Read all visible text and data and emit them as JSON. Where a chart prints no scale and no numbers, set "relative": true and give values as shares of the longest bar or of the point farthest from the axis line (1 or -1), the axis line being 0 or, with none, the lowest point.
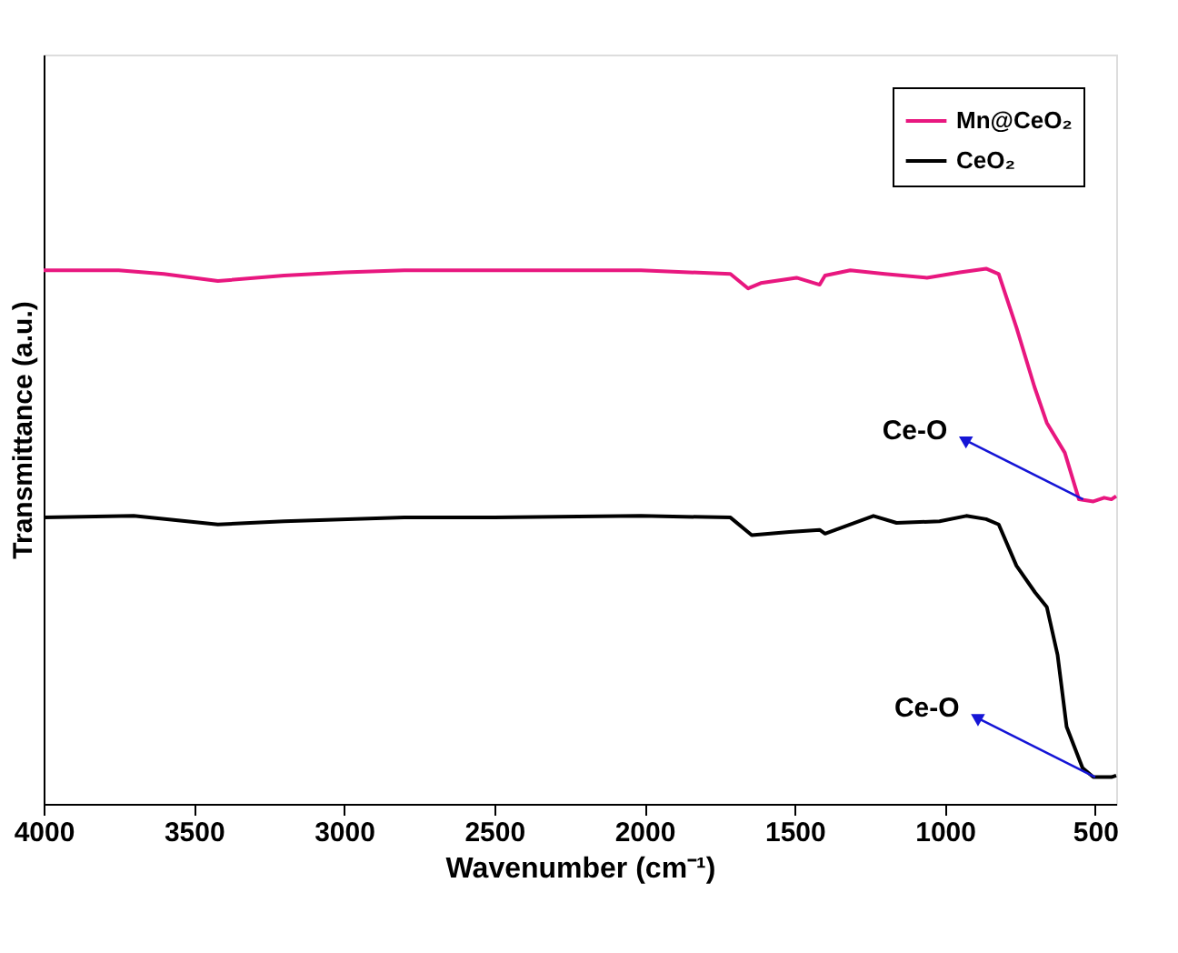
{
  "chart_data": {
    "type": "line",
    "relative": true,
    "xlabel": "Wavenumber (cm⁻¹)",
    "ylabel": "Transmittance (a.u.)",
    "xlim": [
      4000,
      430
    ],
    "xticks": [
      4000,
      3500,
      3000,
      2500,
      2000,
      1500,
      1000,
      500
    ],
    "legend": "top right",
    "grid": false,
    "line_style": "solid",
    "marker": "none",
    "series": [
      {
        "name": "Mn@CeO₂",
        "color": "#e8177f",
        "x": [
          4000,
          3750,
          3600,
          3420,
          3200,
          3000,
          2800,
          2500,
          2012,
          1714,
          1655,
          1613,
          1494,
          1417,
          1399,
          1315,
          1200,
          1060,
          950,
          863,
          821,
          762,
          702,
          661,
          601,
          554,
          506,
          470,
          446,
          430
        ],
        "values": [
          0.997,
          0.997,
          0.99,
          0.977,
          0.987,
          0.993,
          0.997,
          0.997,
          0.997,
          0.99,
          0.963,
          0.973,
          0.983,
          0.97,
          0.987,
          0.997,
          0.99,
          0.983,
          0.993,
          1.0,
          0.99,
          0.89,
          0.779,
          0.712,
          0.656,
          0.569,
          0.565,
          0.572,
          0.569,
          0.575
        ]
      },
      {
        "name": "CeO₂",
        "color": "#000000",
        "x": [
          4000,
          3700,
          3420,
          3200,
          2800,
          2500,
          2012,
          1714,
          1643,
          1518,
          1417,
          1399,
          1238,
          1161,
          1018,
          929,
          863,
          821,
          762,
          700,
          661,
          625,
          595,
          542,
          506,
          446,
          430
        ],
        "values": [
          0.535,
          0.538,
          0.522,
          0.528,
          0.535,
          0.535,
          0.538,
          0.535,
          0.502,
          0.508,
          0.512,
          0.505,
          0.538,
          0.525,
          0.528,
          0.538,
          0.532,
          0.522,
          0.445,
          0.395,
          0.368,
          0.278,
          0.144,
          0.067,
          0.05,
          0.05,
          0.053
        ]
      }
    ],
    "annotations": [
      {
        "text": "Ce-O",
        "x": 540,
        "y": 0.569
      },
      {
        "text": "Ce-O",
        "x": 500,
        "y": 0.05
      }
    ]
  }
}
